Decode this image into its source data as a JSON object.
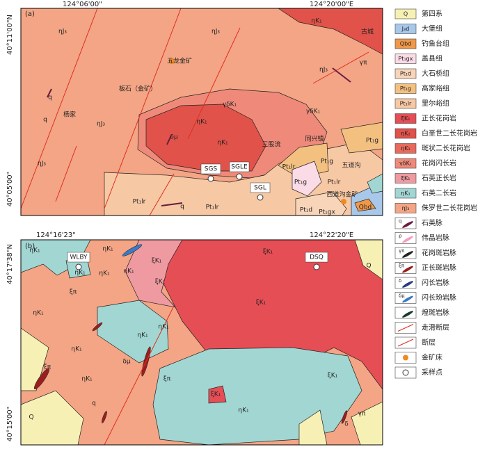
{
  "map_a": {
    "panel": "(a)",
    "lon_left": "124°06'00\"",
    "lon_right": "124°20'00\"E",
    "lat_top": "40°11'00\"N",
    "lat_bottom": "40°05'00\"",
    "labels": [
      "ηJ₃",
      "ηJ₃",
      "ηJ₃",
      "ηJ₃",
      "ηJ₃",
      "五龙金矿",
      "板石（金矿）",
      "杨家",
      "ηK₁",
      "古城",
      "ηK₁",
      "ηK₁",
      "γδK₁",
      "γδK₁",
      "δμ",
      "三股流",
      "同兴镇",
      "五道沟",
      "Pt₁lr",
      "Pt₁lr",
      "Pt₁lr",
      "Pt₁g",
      "Pt₁g",
      "Pt₁g",
      "Pt₁lr",
      "SGS",
      "SGLE",
      "SGL",
      "西道沟金矿",
      "Pt₁gx",
      "Pt₁d",
      "Qbd",
      "q",
      "q",
      "q",
      "γπ"
    ]
  },
  "map_b": {
    "panel": "(b)",
    "lon_left": "124°16'23\"",
    "lon_right": "124°22'20\"E",
    "lat_top": "40°17'38\"N",
    "lat_bottom": "40°15'00\"",
    "labels": [
      "ηK₁",
      "ηK₁",
      "ηK₁",
      "ηK₁",
      "ηK₁",
      "WLBY",
      "ξK₁",
      "ξK₁",
      "ξK₁",
      "DSQ",
      "ξK₁",
      "ηK₁",
      "ηK₁",
      "ξπ",
      "ηK₁",
      "ξπ",
      "ηK₁",
      "δμ",
      "ξπ",
      "ξK₁",
      "ξK₁",
      "ηK₁",
      "Q",
      "q",
      "γπ",
      "δ",
      "Q",
      "ηK₁"
    ]
  },
  "legend": [
    {
      "symbol": "Q",
      "label": "第四系",
      "color": "#f6f0b4"
    },
    {
      "symbol": "J₃d",
      "label": "大堡组",
      "color": "#a8c8ea"
    },
    {
      "symbol": "Qbd",
      "label": "钓鱼台组",
      "color": "#f0984a"
    },
    {
      "symbol": "Pt₁gx",
      "label": "盖县组",
      "color": "#fadbe6"
    },
    {
      "symbol": "Pt₁d",
      "label": "大石桥组",
      "color": "#f8d4b8"
    },
    {
      "symbol": "Pt₁g",
      "label": "高家峪组",
      "color": "#f4c080"
    },
    {
      "symbol": "Pt₁lr",
      "label": "里尔峪组",
      "color": "#f7c8a4"
    },
    {
      "symbol": "ξK₁",
      "label": "正长花岗岩",
      "color": "#e54e55"
    },
    {
      "symbol": "ηK₁",
      "label": "白垩世二长花岗岩",
      "color": "#e0524a"
    },
    {
      "symbol": "ηK₁",
      "label": "斑状二长花岗岩",
      "color": "#e86a5c"
    },
    {
      "symbol": "γδK₁",
      "label": "花岗闪长岩",
      "color": "#ef8a7a"
    },
    {
      "symbol": "ξK₁",
      "label": "石英正长岩",
      "color": "#ef9aa0"
    },
    {
      "symbol": "ηK₁",
      "label": "石英二长岩",
      "color": "#a2d6d2"
    },
    {
      "symbol": "ηJ₃",
      "label": "侏罗世二长花岗岩",
      "color": "#f3a585"
    },
    {
      "symbol": "q",
      "label": "石英脉",
      "color": "#6a1c40"
    },
    {
      "symbol": "ρ",
      "label": "伟晶岩脉",
      "color": "#f4a0c0"
    },
    {
      "symbol": "γπ",
      "label": "花岗斑岩脉",
      "color": "#222222"
    },
    {
      "symbol": "ξπ",
      "label": "正长斑岩脉",
      "color": "#9a1e1e"
    },
    {
      "symbol": "δ",
      "label": "闪长岩脉",
      "color": "#2a3a80"
    },
    {
      "symbol": "δμ",
      "label": "闪长玢岩脉",
      "color": "#3a7ac8"
    },
    {
      "label": "煌斑岩脉",
      "color": "#1e3a2a"
    },
    {
      "label": "走滑断层",
      "color": "#e03020"
    },
    {
      "label": "断层",
      "color": "#e03020"
    },
    {
      "label": "金矿床",
      "color": "#f08a20"
    },
    {
      "label": "采样点",
      "color": "#333333"
    }
  ]
}
